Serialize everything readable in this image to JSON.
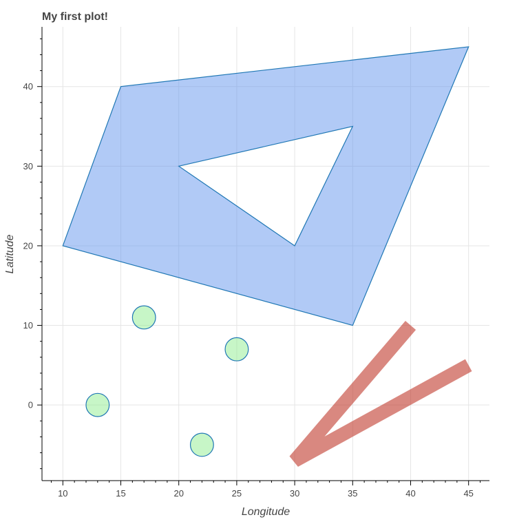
{
  "chart_data": {
    "type": "scatter",
    "title": "My first plot!",
    "xlabel": "Longitude",
    "ylabel": "Latitude",
    "xlim": [
      8.2,
      46.8
    ],
    "ylim": [
      -9.5,
      47.5
    ],
    "x_ticks": [
      10,
      15,
      20,
      25,
      30,
      35,
      40,
      45
    ],
    "y_ticks": [
      0,
      10,
      20,
      30,
      40
    ],
    "minor_tick_step": 2,
    "grid": true,
    "polygon": {
      "outer": [
        [
          10,
          20
        ],
        [
          15,
          40
        ],
        [
          45,
          45
        ],
        [
          35,
          10
        ]
      ],
      "hole": [
        [
          20,
          30
        ],
        [
          35,
          35
        ],
        [
          30,
          20
        ]
      ],
      "fill_color": "#6495ed",
      "fill_alpha": 0.5,
      "line_color": "#1f77b4"
    },
    "circles": {
      "points": [
        [
          13,
          0
        ],
        [
          17,
          11
        ],
        [
          22,
          -5
        ],
        [
          25,
          7
        ]
      ],
      "radius": 1,
      "fill_color": "#90ee90",
      "fill_alpha": 0.5,
      "line_color": "#1f77b4"
    },
    "lines": {
      "x": [
        40,
        30,
        45
      ],
      "y": [
        10,
        -7,
        5
      ],
      "color": "#c0392b",
      "alpha": 0.6
    }
  }
}
